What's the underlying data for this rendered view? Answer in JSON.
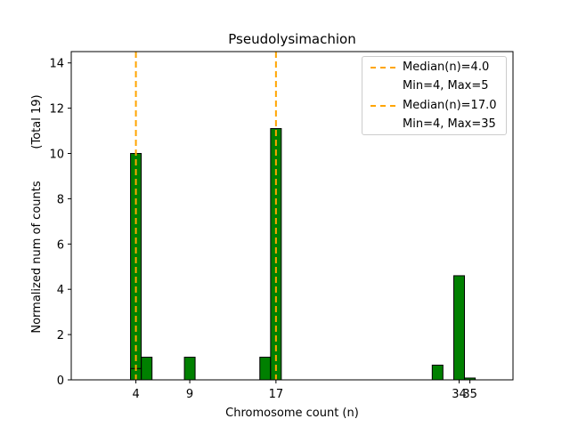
{
  "chart_data": {
    "type": "bar",
    "title": "Pseudolysimachion",
    "xlabel": "Chromosome count (n)",
    "ylabel": "Normalized num of counts",
    "ylabel_secondary": "(Total 19)",
    "xlim": [
      -2,
      39
    ],
    "ylim": [
      0,
      14.5
    ],
    "xticks": [
      4,
      9,
      17,
      34,
      35
    ],
    "yticks": [
      0,
      2,
      4,
      6,
      8,
      10,
      12,
      14
    ],
    "bar_color": "#008000",
    "series": [
      {
        "name": "Median(n)=4.0, Min=4, Max=5",
        "bars": [
          {
            "x": 4,
            "value": 10.0
          },
          {
            "x": 5,
            "value": 1.0
          }
        ]
      },
      {
        "name": "Median(n)=17.0, Min=4, Max=35",
        "bars": [
          {
            "x": 4,
            "value": 0.5
          },
          {
            "x": 9,
            "value": 1.0
          },
          {
            "x": 16,
            "value": 1.0
          },
          {
            "x": 17,
            "value": 11.1
          },
          {
            "x": 32,
            "value": 0.65
          },
          {
            "x": 34,
            "value": 4.6
          },
          {
            "x": 35,
            "value": 0.08
          }
        ]
      }
    ],
    "median_lines": [
      {
        "x": 4.0,
        "color": "#ffa500"
      },
      {
        "x": 17.0,
        "color": "#ffa500"
      }
    ],
    "legend": [
      {
        "label": "Median(n)=4.0",
        "has_line": true
      },
      {
        "label": "Min=4, Max=5",
        "has_line": false
      },
      {
        "label": "Median(n)=17.0",
        "has_line": true
      },
      {
        "label": "Min=4, Max=35",
        "has_line": false
      }
    ],
    "legend_position": "top-right"
  }
}
